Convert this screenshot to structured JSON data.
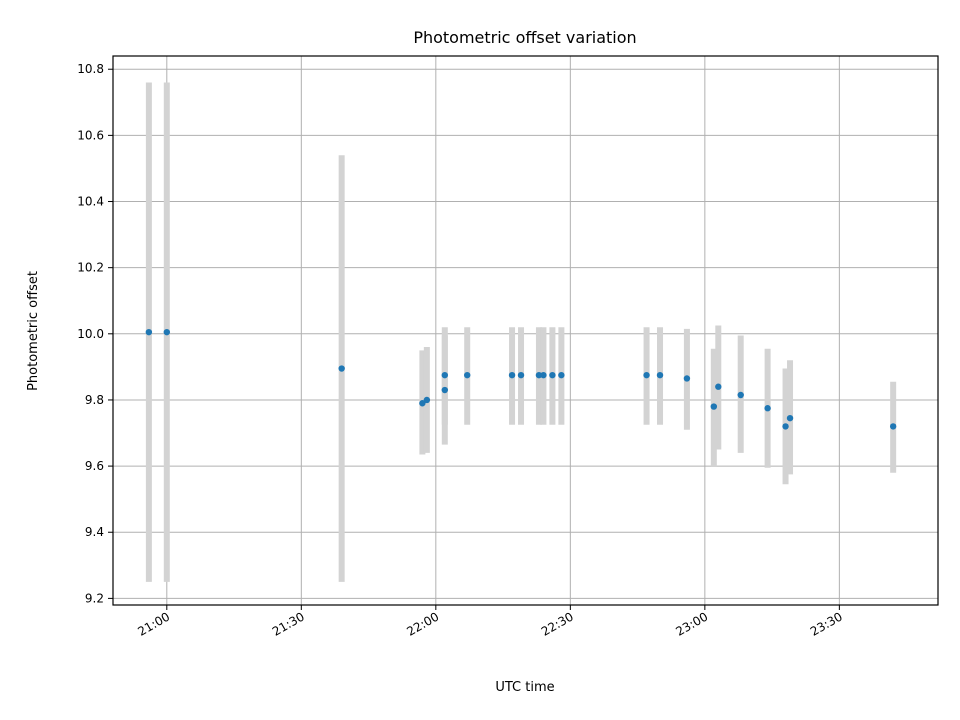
{
  "chart_data": {
    "type": "scatter",
    "title": "Photometric offset variation",
    "xlabel": "UTC time",
    "ylabel": "Photometric offset",
    "grid": true,
    "x_ticks": [
      "21:00",
      "21:30",
      "22:00",
      "22:30",
      "23:00",
      "23:30"
    ],
    "y_ticks": [
      "9.2",
      "9.4",
      "9.6",
      "9.8",
      "10.0",
      "10.2",
      "10.4",
      "10.6",
      "10.8"
    ],
    "xlim": [
      "20:48",
      "23:52"
    ],
    "ylim": [
      9.18,
      10.84
    ],
    "colors": {
      "point": "#1f77b4",
      "errorbar": "#d3d3d3"
    },
    "points": [
      {
        "x": "20:56",
        "y": 10.005,
        "ylo": 9.25,
        "yhi": 10.76
      },
      {
        "x": "21:00",
        "y": 10.005,
        "ylo": 9.25,
        "yhi": 10.76
      },
      {
        "x": "21:39",
        "y": 9.895,
        "ylo": 9.25,
        "yhi": 10.54
      },
      {
        "x": "21:57",
        "y": 9.79,
        "ylo": 9.635,
        "yhi": 9.95
      },
      {
        "x": "21:58",
        "y": 9.8,
        "ylo": 9.64,
        "yhi": 9.96
      },
      {
        "x": "22:02",
        "y": 9.83,
        "ylo": 9.665,
        "yhi": 9.995
      },
      {
        "x": "22:02",
        "y": 9.875,
        "ylo": 9.725,
        "yhi": 10.02
      },
      {
        "x": "22:07",
        "y": 9.875,
        "ylo": 9.725,
        "yhi": 10.02
      },
      {
        "x": "22:17",
        "y": 9.875,
        "ylo": 9.725,
        "yhi": 10.02
      },
      {
        "x": "22:19",
        "y": 9.875,
        "ylo": 9.725,
        "yhi": 10.02
      },
      {
        "x": "22:23",
        "y": 9.875,
        "ylo": 9.725,
        "yhi": 10.02
      },
      {
        "x": "22:24",
        "y": 9.875,
        "ylo": 9.725,
        "yhi": 10.02
      },
      {
        "x": "22:26",
        "y": 9.875,
        "ylo": 9.725,
        "yhi": 10.02
      },
      {
        "x": "22:28",
        "y": 9.875,
        "ylo": 9.725,
        "yhi": 10.02
      },
      {
        "x": "22:47",
        "y": 9.875,
        "ylo": 9.725,
        "yhi": 10.02
      },
      {
        "x": "22:50",
        "y": 9.875,
        "ylo": 9.725,
        "yhi": 10.02
      },
      {
        "x": "22:56",
        "y": 9.865,
        "ylo": 9.71,
        "yhi": 10.015
      },
      {
        "x": "23:02",
        "y": 9.78,
        "ylo": 9.6,
        "yhi": 9.955
      },
      {
        "x": "23:03",
        "y": 9.84,
        "ylo": 9.65,
        "yhi": 10.025
      },
      {
        "x": "23:08",
        "y": 9.815,
        "ylo": 9.64,
        "yhi": 9.995
      },
      {
        "x": "23:14",
        "y": 9.775,
        "ylo": 9.595,
        "yhi": 9.955
      },
      {
        "x": "23:18",
        "y": 9.72,
        "ylo": 9.545,
        "yhi": 9.895
      },
      {
        "x": "23:19",
        "y": 9.745,
        "ylo": 9.575,
        "yhi": 9.92
      },
      {
        "x": "23:42",
        "y": 9.72,
        "ylo": 9.58,
        "yhi": 9.855
      }
    ]
  }
}
